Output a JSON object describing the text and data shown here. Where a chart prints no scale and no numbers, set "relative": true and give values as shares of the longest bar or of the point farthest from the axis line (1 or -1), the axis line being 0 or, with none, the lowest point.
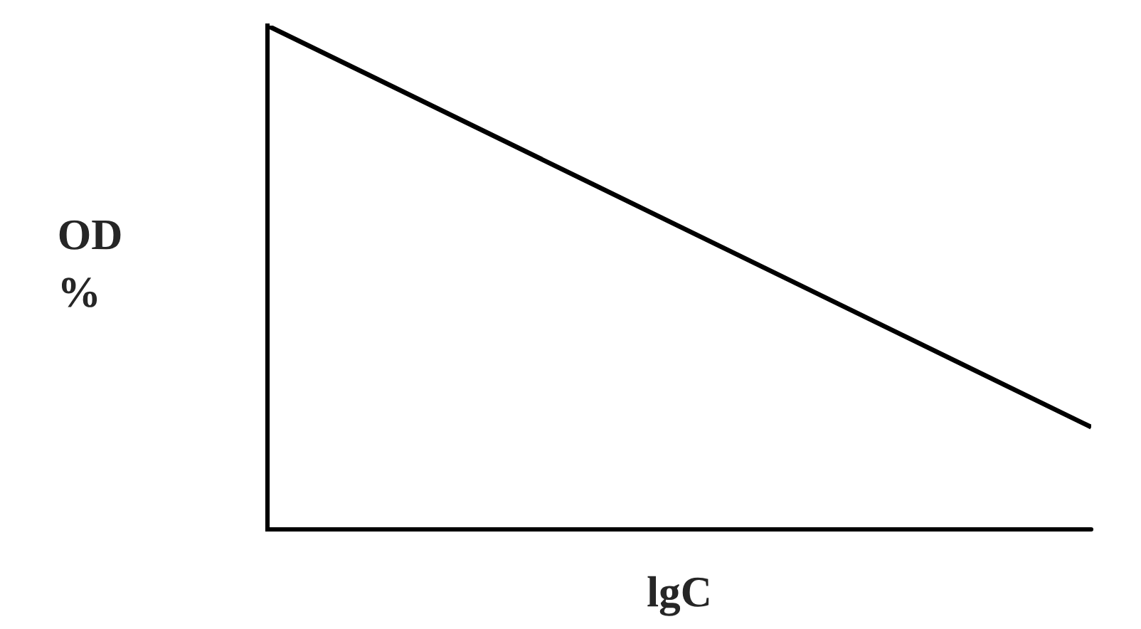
{
  "chart_data": {
    "type": "line",
    "relative": true,
    "xlabel": "lgC",
    "ylabel": "OD\n%",
    "categories": [
      null,
      null
    ],
    "ref_lines": [
      {
        "axis": "y",
        "value": 0,
        "color": "#000000"
      }
    ],
    "series": [
      {
        "color": "#000000",
        "values": [
          1,
          0.203
        ]
      }
    ]
  }
}
